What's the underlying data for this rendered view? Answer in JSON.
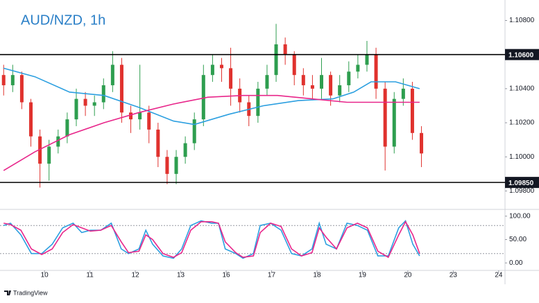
{
  "chart_data": [
    {
      "type": "candlestick",
      "title": "AUD/NZD, 1h",
      "x": [
        -0.9,
        -0.7,
        -0.5,
        -0.3,
        -0.1,
        0.1,
        0.3,
        0.5,
        0.7,
        0.9,
        1.1,
        1.3,
        1.5,
        1.7,
        1.9,
        2.1,
        2.3,
        2.5,
        2.7,
        2.9,
        3.1,
        3.3,
        3.5,
        3.7,
        3.9,
        4.1,
        4.3,
        4.5,
        4.7,
        4.9,
        5.1,
        5.3,
        5.5,
        5.7,
        5.9,
        6.1,
        6.3,
        6.5,
        6.7,
        6.9,
        7.1,
        7.3,
        7.5,
        7.7,
        7.9,
        8.1,
        8.3
      ],
      "open": [
        1.1048,
        1.1042,
        1.1048,
        1.1032,
        1.1012,
        1.0996,
        1.1006,
        1.1012,
        1.1022,
        1.1034,
        1.103,
        1.1032,
        1.1042,
        1.1054,
        1.1026,
        1.1022,
        1.1026,
        1.1016,
        1.1,
        1.099,
        1.1,
        1.1008,
        1.1022,
        1.1048,
        1.1054,
        1.1052,
        1.104,
        1.1032,
        1.1024,
        1.104,
        1.1048,
        1.1066,
        1.106,
        1.1048,
        1.1042,
        1.104,
        1.1048,
        1.1036,
        1.1042,
        1.105,
        1.1054,
        1.106,
        1.104,
        1.1006,
        1.1034,
        1.104,
        1.1014
      ],
      "high": [
        1.1054,
        1.1054,
        1.105,
        1.1034,
        1.1016,
        1.101,
        1.1016,
        1.1026,
        1.104,
        1.1038,
        1.1036,
        1.1046,
        1.1062,
        1.1058,
        1.103,
        1.1054,
        1.103,
        1.102,
        1.1004,
        1.1004,
        1.1012,
        1.1026,
        1.1054,
        1.106,
        1.1058,
        1.1064,
        1.1046,
        1.1036,
        1.1044,
        1.1054,
        1.1078,
        1.107,
        1.1062,
        1.1052,
        1.1048,
        1.1058,
        1.105,
        1.1048,
        1.1056,
        1.106,
        1.1068,
        1.1064,
        1.1044,
        1.1038,
        1.1046,
        1.1044,
        1.1018
      ],
      "low": [
        1.1036,
        1.1038,
        1.1028,
        1.1006,
        1.0982,
        1.0986,
        1.1002,
        1.1008,
        1.1018,
        1.1024,
        1.1024,
        1.1028,
        1.1038,
        1.102,
        1.1014,
        1.1016,
        1.1008,
        1.0994,
        1.0984,
        1.0984,
        1.0996,
        1.1004,
        1.1018,
        1.1044,
        1.1044,
        1.103,
        1.1026,
        1.1018,
        1.102,
        1.1036,
        1.1044,
        1.1054,
        1.1042,
        1.1036,
        1.1034,
        1.1034,
        1.103,
        1.1032,
        1.1038,
        1.1046,
        1.105,
        1.1034,
        1.0992,
        1.1002,
        1.103,
        1.101,
        1.0994
      ],
      "close": [
        1.1042,
        1.1048,
        1.1032,
        1.1012,
        1.0996,
        1.1006,
        1.1012,
        1.1022,
        1.1034,
        1.103,
        1.1032,
        1.1042,
        1.1054,
        1.1026,
        1.1022,
        1.1026,
        1.1016,
        1.1,
        1.099,
        1.1,
        1.1008,
        1.1022,
        1.1048,
        1.1054,
        1.1052,
        1.104,
        1.1032,
        1.1024,
        1.104,
        1.1048,
        1.1066,
        1.106,
        1.1048,
        1.1042,
        1.104,
        1.1048,
        1.1036,
        1.1042,
        1.105,
        1.1054,
        1.106,
        1.104,
        1.1006,
        1.1034,
        1.104,
        1.1014,
        1.1002
      ],
      "up_color": "#2e9e4f",
      "down_color": "#e0322e",
      "lines": [
        {
          "color": "#2b9fe0",
          "x": [
            -0.9,
            -0.21,
            0.55,
            1.31,
            2.08,
            2.84,
            3.3,
            4.06,
            4.82,
            5.59,
            6.35,
            6.81,
            7.19,
            7.73,
            8.26
          ],
          "values": [
            1.1052,
            1.1047,
            1.1038,
            1.1036,
            1.1029,
            1.1021,
            1.1019,
            1.1025,
            1.103,
            1.1033,
            1.1034,
            1.1038,
            1.1044,
            1.1044,
            1.104
          ]
        },
        {
          "color": "#e8258a",
          "x": [
            -0.9,
            -0.21,
            0.55,
            1.31,
            2.08,
            2.84,
            3.6,
            4.37,
            5.13,
            5.89,
            6.66,
            7.42,
            8.26
          ],
          "values": [
            1.0992,
            1.1003,
            1.1013,
            1.102,
            1.1026,
            1.1031,
            1.1035,
            1.1036,
            1.1036,
            1.1034,
            1.1032,
            1.1032,
            1.1032
          ]
        }
      ],
      "levels": [
        {
          "value": 1.106,
          "label": "1.10600"
        },
        {
          "value": 1.0985,
          "label": "1.09850"
        }
      ],
      "ylim": [
        1.097,
        1.1092
      ],
      "yticks": [
        {
          "value": 1.098,
          "label": "1.09800"
        },
        {
          "value": 1.1,
          "label": "1.10000"
        },
        {
          "value": 1.102,
          "label": "1.10200"
        },
        {
          "value": 1.104,
          "label": "1.10400"
        },
        {
          "value": 1.108,
          "label": "1.10800"
        }
      ],
      "xlim": [
        -0.98,
        10.14
      ]
    },
    {
      "type": "line",
      "x": [
        -0.9,
        -0.75,
        -0.52,
        -0.29,
        -0.06,
        0.17,
        0.4,
        0.63,
        0.82,
        1.01,
        1.24,
        1.47,
        1.69,
        1.85,
        2.08,
        2.23,
        2.38,
        2.61,
        2.84,
        3.02,
        3.22,
        3.45,
        3.68,
        3.83,
        3.98,
        4.21,
        4.37,
        4.6,
        4.75,
        4.98,
        5.21,
        5.44,
        5.66,
        5.89,
        6.05,
        6.2,
        6.43,
        6.66,
        6.89,
        7.11,
        7.34,
        7.57,
        7.8,
        7.95,
        8.11,
        8.26
      ],
      "series": [
        {
          "color": "#2b9fe0",
          "values": [
            80,
            85,
            60,
            20,
            20,
            40,
            75,
            85,
            65,
            70,
            70,
            85,
            30,
            20,
            30,
            70,
            40,
            15,
            10,
            30,
            80,
            90,
            85,
            85,
            30,
            20,
            10,
            20,
            80,
            85,
            70,
            20,
            15,
            30,
            85,
            40,
            30,
            85,
            80,
            70,
            15,
            15,
            75,
            90,
            40,
            15
          ]
        },
        {
          "color": "#e8258a",
          "values": [
            85,
            82,
            70,
            30,
            18,
            30,
            65,
            82,
            75,
            68,
            70,
            80,
            45,
            22,
            25,
            60,
            50,
            20,
            12,
            22,
            70,
            88,
            88,
            85,
            45,
            22,
            12,
            15,
            65,
            85,
            78,
            30,
            15,
            22,
            75,
            55,
            30,
            75,
            85,
            75,
            25,
            12,
            60,
            88,
            60,
            20
          ]
        }
      ],
      "levels": [
        80,
        20
      ],
      "ylim": [
        -16,
        110
      ],
      "yticks": [
        {
          "value": 0,
          "label": "0.00"
        },
        {
          "value": 50,
          "label": "50.00"
        },
        {
          "value": 100,
          "label": "100.00"
        }
      ],
      "xlim": [
        -0.98,
        10.14
      ],
      "xticks": [
        {
          "value": 0,
          "label": "10"
        },
        {
          "value": 1,
          "label": "11"
        },
        {
          "value": 2,
          "label": "12"
        },
        {
          "value": 3,
          "label": "13"
        },
        {
          "value": 4,
          "label": "16"
        },
        {
          "value": 5,
          "label": "17"
        },
        {
          "value": 6,
          "label": "18"
        },
        {
          "value": 7,
          "label": "19"
        },
        {
          "value": 8,
          "label": "20"
        },
        {
          "value": 9,
          "label": "23"
        },
        {
          "value": 10,
          "label": "24"
        }
      ]
    }
  ],
  "footer": {
    "brand": "TradingView"
  }
}
